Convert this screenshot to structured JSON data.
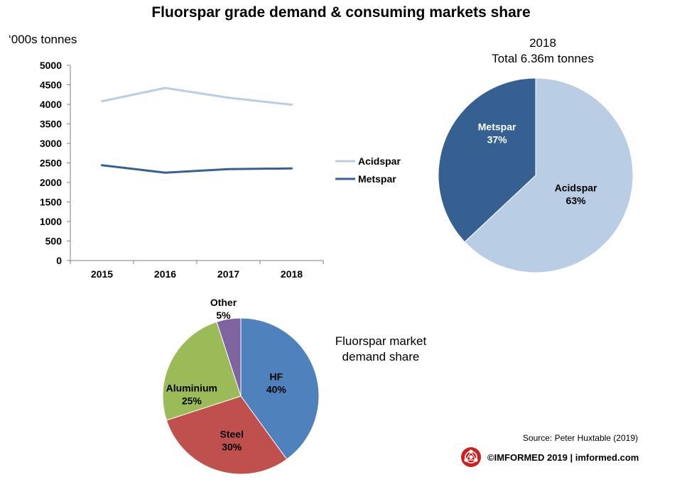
{
  "title": "Fluorspar grade demand & consuming markets share",
  "line_chart_unit": "‘000s tonnes",
  "pie1_caption": {
    "line1": "2018",
    "line2": "Total 6.36m tonnes"
  },
  "pie2_caption": {
    "line1": "Fluorspar market",
    "line2": "demand share"
  },
  "source": "Source: Peter Huxtable (2019)",
  "footer": "©IMFORMED 2019  | imformed.com",
  "logo": "imformed-logo-icon",
  "colors": {
    "acidspar": "#b9cde4",
    "metspar": "#376092",
    "hf": "#4f81bd",
    "steel": "#c0504d",
    "aluminium": "#9bbb59",
    "other": "#8064a2",
    "logo_red": "#cc1f1f"
  },
  "chart_data": [
    {
      "type": "line",
      "categories": [
        "2015",
        "2016",
        "2017",
        "2018"
      ],
      "series": [
        {
          "name": "Acidspar",
          "values": [
            4080,
            4420,
            4170,
            3990
          ],
          "color": "#b9cde4"
        },
        {
          "name": "Metspar",
          "values": [
            2440,
            2250,
            2340,
            2360
          ],
          "color": "#376092"
        }
      ],
      "ylim": [
        0,
        5000
      ],
      "yticks": [
        "0",
        "500",
        "1000",
        "1500",
        "2000",
        "2500",
        "3000",
        "3500",
        "4000",
        "4500",
        "5000"
      ],
      "ylabel": "‘000s tonnes",
      "legend": "right"
    },
    {
      "type": "pie",
      "title": "2018",
      "subtitle": "Total 6.36m tonnes",
      "slices": [
        {
          "label": "Acidspar",
          "pct_label": "63%",
          "value": 63,
          "color": "#b9cde4"
        },
        {
          "label": "Metspar",
          "pct_label": "37%",
          "value": 37,
          "color": "#376092",
          "text_color": "#ffffff"
        }
      ]
    },
    {
      "type": "pie",
      "title": "Fluorspar market demand share",
      "slices": [
        {
          "label": "HF",
          "pct_label": "40%",
          "value": 40,
          "color": "#4f81bd"
        },
        {
          "label": "Steel",
          "pct_label": "30%",
          "value": 30,
          "color": "#c0504d"
        },
        {
          "label": "Aluminium",
          "pct_label": "25%",
          "value": 25,
          "color": "#9bbb59"
        },
        {
          "label": "Other",
          "pct_label": "5%",
          "value": 5,
          "color": "#8064a2"
        }
      ]
    }
  ]
}
